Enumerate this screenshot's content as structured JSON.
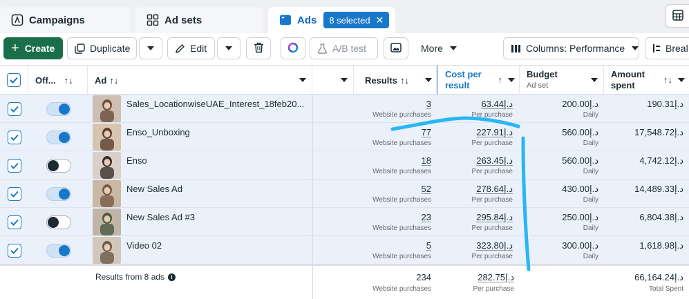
{
  "tabs": {
    "campaigns": "Campaigns",
    "adsets": "Ad sets",
    "ads": "Ads",
    "selected": "8 selected"
  },
  "toolbar": {
    "create": "Create",
    "duplicate": "Duplicate",
    "edit": "Edit",
    "abtest": "A/B test",
    "more": "More",
    "columns": "Columns: Performance",
    "breakdown": "Breal"
  },
  "header": {
    "off": "Off...",
    "ad": "Ad",
    "results": "Results",
    "cost_line1": "Cost per",
    "cost_line2": "result",
    "budget": "Budget",
    "budget_sub": "Ad set",
    "amount_line1": "Amount",
    "amount_line2": "spent"
  },
  "rows": [
    {
      "name": "Sales_LocationwiseUAE_Interest_18feb20...",
      "on": true,
      "results": "3",
      "results_label": "Website purchases",
      "cost": "63.44د.إ",
      "cost_label": "Per purchase",
      "budget": "200.00د.إ",
      "budget_label": "Daily",
      "spent": "190.31د.إ"
    },
    {
      "name": "Enso_Unboxing",
      "on": true,
      "results": "77",
      "results_label": "Website purchases",
      "cost": "227.91د.إ",
      "cost_label": "Per purchase",
      "budget": "560.00د.إ",
      "budget_label": "Daily",
      "spent": "17,548.72د.إ"
    },
    {
      "name": "Enso",
      "on": false,
      "results": "18",
      "results_label": "Website purchases",
      "cost": "263.45د.إ",
      "cost_label": "Per purchase",
      "budget": "560.00د.إ",
      "budget_label": "Daily",
      "spent": "4,742.12د.إ"
    },
    {
      "name": "New Sales Ad",
      "on": true,
      "results": "52",
      "results_label": "Website purchases",
      "cost": "278.64د.إ",
      "cost_label": "Per purchase",
      "budget": "430.00د.إ",
      "budget_label": "Daily",
      "spent": "14,489.33د.إ"
    },
    {
      "name": "New Sales Ad #3",
      "on": false,
      "results": "23",
      "results_label": "Website purchases",
      "cost": "295.84د.إ",
      "cost_label": "Per purchase",
      "budget": "250.00د.إ",
      "budget_label": "Daily",
      "spent": "6,804.38د.إ"
    },
    {
      "name": "Video 02",
      "on": true,
      "results": "5",
      "results_label": "Website purchases",
      "cost": "323.80د.إ",
      "cost_label": "Per purchase",
      "budget": "300.00د.إ",
      "budget_label": "Daily",
      "spent": "1,618.98د.إ"
    }
  ],
  "footer": {
    "label": "Results from 8 ads",
    "results": "234",
    "results_label": "Website purchases",
    "cost": "282.75د.إ",
    "cost_label": "Per purchase",
    "spent": "66,164.24د.إ",
    "spent_label": "Total Spent"
  },
  "colors": {
    "accent": "#1877c9",
    "create": "#1b6e4a",
    "selected_row": "#eaf1fb",
    "annotation": "#29b6f6"
  },
  "icons": {
    "campaigns": "campaign-flag-icon",
    "adsets": "grid-icon",
    "ads": "ad-window-icon",
    "table": "table-layout-icon"
  }
}
